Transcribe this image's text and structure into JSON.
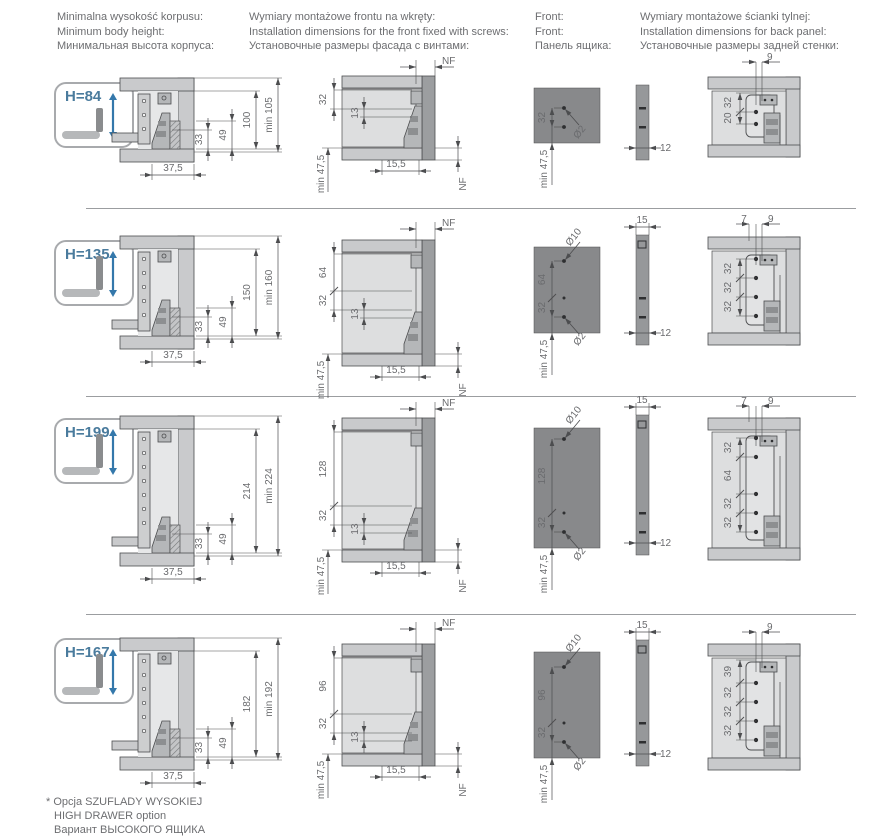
{
  "palette": {
    "accent_blue": "#4a7b9d",
    "arrow_blue": "#3478ab",
    "text_gray": "#6d6e71",
    "line_dark": "#4c4d4f",
    "panel_light": "#c9cacc",
    "panel_lighter": "#dddedf",
    "front_dark": "#88898b",
    "side_bar": "#96989a"
  },
  "headers": [
    {
      "lines": [
        "Minimalna wysokość korpusu:",
        "Minimum body height:",
        "Минимальная высота корпуса:"
      ]
    },
    {
      "lines": [
        "Wymiary montażowe frontu na wkręty:",
        "Installation dimensions for the front fixed with screws:",
        "Установочные размеры фасада с винтами:"
      ]
    },
    {
      "lines": [
        "Front:",
        "Front:",
        "Панель ящика:"
      ]
    },
    {
      "lines": [
        "Wymiary montażowe ścianki tylnej:",
        "Installation dimensions for back panel:",
        "Установочные размеры задней стенки:"
      ]
    }
  ],
  "footnote": {
    "lines": [
      "* Opcja SZUFLADY WYSOKIEJ",
      "HIGH DRAWER option",
      "Вариант ВЫСОКОГО ЯЩИКА"
    ]
  },
  "rows": [
    {
      "badge": "H=84",
      "body": {
        "width": "37,5",
        "h1": "33",
        "h2": "49",
        "inner": "100",
        "min": "min 105"
      },
      "front_fix": {
        "nf_top": "NF",
        "chain": [
          "32"
        ],
        "offset": "13",
        "min": "min 47,5",
        "depth": "15,5",
        "nf_bottom": "NF"
      },
      "front_panel": {
        "spacings": [
          "32"
        ],
        "holes": [
          "Ø2"
        ],
        "min": "min 47,5",
        "thickness": "12"
      },
      "back_panel": {
        "top_offsets": [
          "9"
        ],
        "spacings": [
          "32",
          "20"
        ]
      }
    },
    {
      "badge": "H=135",
      "body": {
        "width": "37,5",
        "h1": "33",
        "h2": "49",
        "inner": "150",
        "min": "min 160"
      },
      "front_fix": {
        "nf_top": "NF",
        "chain": [
          "64",
          "32"
        ],
        "offset": "13",
        "min": "min 47,5",
        "depth": "15,5",
        "nf_bottom": "NF"
      },
      "front_panel": {
        "spacings": [
          "64",
          "32"
        ],
        "holes": [
          "Ø10",
          "Ø2"
        ],
        "min": "min 47,5",
        "thickness": "12",
        "top_width": "15"
      },
      "back_panel": {
        "top_offsets": [
          "7",
          "9"
        ],
        "spacings": [
          "32",
          "32",
          "32"
        ]
      }
    },
    {
      "badge": "H=199",
      "body": {
        "width": "37,5",
        "h1": "33",
        "h2": "49",
        "inner": "214",
        "min": "min 224"
      },
      "front_fix": {
        "nf_top": "NF",
        "chain": [
          "128",
          "32"
        ],
        "offset": "13",
        "min": "min 47,5",
        "depth": "15,5",
        "nf_bottom": "NF"
      },
      "front_panel": {
        "spacings": [
          "128",
          "32"
        ],
        "holes": [
          "Ø10",
          "Ø2"
        ],
        "min": "min 47,5",
        "thickness": "12",
        "top_width": "15"
      },
      "back_panel": {
        "top_offsets": [
          "7",
          "9"
        ],
        "spacings": [
          "32",
          "64",
          "32",
          "32"
        ]
      }
    },
    {
      "badge": "H=167",
      "body": {
        "width": "37,5",
        "h1": "33",
        "h2": "49",
        "inner": "182",
        "min": "min 192"
      },
      "front_fix": {
        "nf_top": "NF",
        "chain": [
          "96",
          "32"
        ],
        "offset": "13",
        "min": "min 47,5",
        "depth": "15,5",
        "nf_bottom": "NF"
      },
      "front_panel": {
        "spacings": [
          "96",
          "32"
        ],
        "holes": [
          "Ø10",
          "Ø2"
        ],
        "min": "min 47,5",
        "thickness": "12",
        "top_width": "15"
      },
      "back_panel": {
        "top_offsets": [
          "9"
        ],
        "spacings": [
          "39",
          "32",
          "32",
          "32"
        ]
      }
    }
  ]
}
